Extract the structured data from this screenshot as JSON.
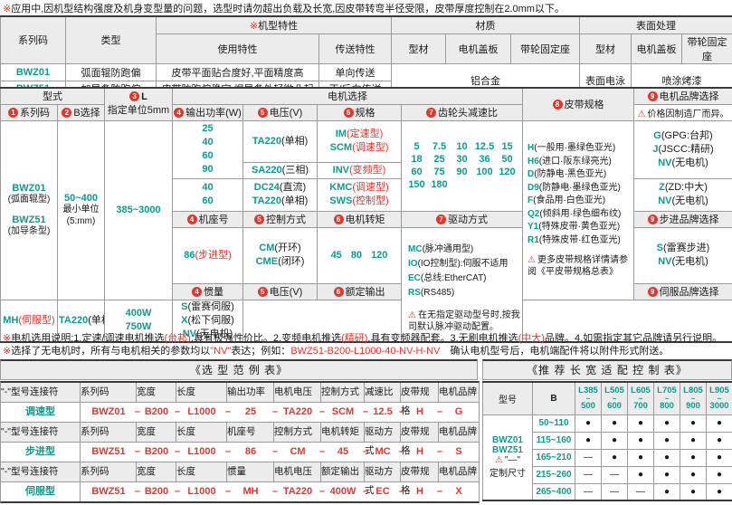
{
  "colors": {
    "teal": "#0E9B8C",
    "red": "#E5352B",
    "header_bg": "#ECECEC"
  },
  "note_top": [
    {
      "t": "※",
      "cls": "rd"
    },
    {
      "t": "应用中,因机型结构强度及机身变型量的问题，选型时请勿超出负载及长宽,因皮带转弯半径受限，皮带厚度控制在2.0mm以下。"
    }
  ],
  "top_table": {
    "series_h": "系列码",
    "type_h": "类型",
    "feat_mark": "※",
    "feat_h": "机型特性",
    "mat_h": "材质",
    "surf_h": "表面处理",
    "use_h": "使用特性",
    "trans_h": "传送特性",
    "profile_h": "型材",
    "cover_h": "电机盖板",
    "pulley_h": "带轮固定座",
    "profile2_h": "型材",
    "cover2_h": "电机盖板",
    "pulley2_h": "带轮固定座",
    "rows": [
      {
        "series": "BWZ01",
        "type": "弧面辊防跑偏",
        "use": "皮带平面贴合度好,平面精度高",
        "trans": "单向传送"
      },
      {
        "series": "BWZ51",
        "type": "加导条防跑偏",
        "use": "皮带防跑偏稳定,焊导条处轻微凸起",
        "trans": "正/反向传送"
      }
    ],
    "material": "铝合金",
    "surface_profile": "表面电泳",
    "surface_paint": "喷涂烤漆"
  },
  "main": {
    "h_type": "型式",
    "h_L": {
      "n": "3",
      "t": "L",
      "sub": "指定单位5mm"
    },
    "h_motor": "电机选择",
    "h_series": {
      "n": "1",
      "t": "系列码"
    },
    "h_b": {
      "n": "2",
      "t": "B选择"
    },
    "h_power": {
      "n": "4",
      "t": "输出功率(W)"
    },
    "h_volt": {
      "n": "5",
      "t": "电压(V)"
    },
    "h_spec": {
      "n": "6",
      "t": "规格"
    },
    "h_ratio": {
      "n": "7",
      "t": "齿轮头减速比"
    },
    "h_belt": {
      "n": "8",
      "t": "皮带规格"
    },
    "h_brand": {
      "n": "9",
      "t": "电机品牌选择"
    },
    "brand_note": "价格因制造厂而异。",
    "series1": "BWZ01",
    "series1_sub": "(弧面辊型)",
    "series2": "BWZ51",
    "series2_sub": "(加导条型)",
    "b_range": "50~400",
    "b_sub1": "最小单位",
    "b_sub2": "(5:mm)",
    "l_range": "385~3000",
    "power1": [
      "25",
      "40",
      "60",
      "90"
    ],
    "power2": [
      "40",
      "60"
    ],
    "volt1": [
      {
        "c": "TA220",
        "p": "(单相)"
      }
    ],
    "volt2": [
      {
        "c": "SA220",
        "p": "(三相)"
      }
    ],
    "volt3": [
      {
        "c": "DC24",
        "p": "(直流)"
      },
      {
        "c": "TA220",
        "p": "(单相)"
      }
    ],
    "spec1": [
      {
        "c": "IM",
        "p": "(定速型)",
        "r": 1
      },
      {
        "c": "SCM",
        "p": "(调速型)",
        "r": 1
      }
    ],
    "spec2": [
      {
        "c": "INV",
        "p": "(变频型)",
        "r": 1
      }
    ],
    "spec3": [
      {
        "c": "KMC",
        "p": "(调速型)",
        "r": 1
      },
      {
        "c": "SWS",
        "p": "(控制型)",
        "r": 1
      }
    ],
    "ratios": [
      "5",
      "7.5",
      "10",
      "12.5",
      "15",
      "18",
      "25",
      "30",
      "36",
      "50",
      "60",
      "75",
      "90",
      "100",
      "120",
      "150",
      "180"
    ],
    "brand1": [
      {
        "c": "G",
        "p": "(GPG:台邦)"
      },
      {
        "c": "J",
        "p": "(JSCC:精研)"
      },
      {
        "c": "NV",
        "p": "(无电机)"
      }
    ],
    "brand2": [
      {
        "c": "Z",
        "p": "(ZD:中大)"
      },
      {
        "c": "NV",
        "p": "(无电机)"
      }
    ],
    "h_frame": {
      "n": "4",
      "t": "机座号"
    },
    "h_ctrl": {
      "n": "5",
      "t": "控制方式"
    },
    "h_torque": {
      "n": "6",
      "t": "电机转矩"
    },
    "h_drive": {
      "n": "7",
      "t": "驱动方式"
    },
    "h_step_brand": {
      "n": "9",
      "t": "步进品牌选择"
    },
    "frame": [
      {
        "c": "86",
        "p": "(步进型)",
        "r": 1
      }
    ],
    "ctrl": [
      {
        "c": "CM",
        "p": "(开环)"
      },
      {
        "c": "CME",
        "p": "(闭环)"
      }
    ],
    "torque": [
      "45",
      "80",
      "120"
    ],
    "drive": [
      {
        "c": "MC",
        "p": "(脉冲通用型)"
      },
      {
        "c": "IO",
        "p": "(IO控制型):伺服不适用"
      },
      {
        "c": "EC",
        "p": "(总线:EtherCAT)"
      },
      {
        "c": "RS",
        "p": "(RS485)"
      }
    ],
    "drive_note": "在无指定驱动型号时,按我司默认脉冲驱动配置。",
    "step_brand": [
      {
        "c": "S",
        "p": "(雷赛步进)"
      },
      {
        "c": "NV",
        "p": "(无电机)"
      }
    ],
    "h_inertia": {
      "n": "4",
      "t": "惯量"
    },
    "h_volt2": {
      "n": "5",
      "t": "电压(V)"
    },
    "h_rated": {
      "n": "6",
      "t": "额定输出"
    },
    "h_servo_brand": {
      "n": "9",
      "t": "伺服品牌选择"
    },
    "inertia": [
      {
        "c": "MH",
        "p": "(伺服型)",
        "r": 1
      }
    ],
    "volt4": [
      {
        "c": "TA220",
        "p": "(单相)"
      }
    ],
    "rated": [
      "400W",
      "750W"
    ],
    "servo_brand": [
      {
        "c": "S",
        "p": "(雷赛伺服)"
      },
      {
        "c": "X",
        "p": "(松下伺服)"
      },
      {
        "c": "NV",
        "p": "(无电机)"
      }
    ],
    "belts": [
      {
        "c": "H",
        "p": "(一般用·墨绿色亚光)"
      },
      {
        "c": "H6",
        "p": "(进口·阪东绿亮光)"
      },
      {
        "c": "D",
        "p": "(防静电·黑色亚光)"
      },
      {
        "c": "D9",
        "p": "(防静电·墨绿色亚光)"
      },
      {
        "c": "F",
        "p": "(食品用·白色亚光)"
      },
      {
        "c": "Q2",
        "p": "(倾斜用·绿色细布纹)"
      },
      {
        "c": "Y1",
        "p": "(特殊皮带·黄色亚光)"
      },
      {
        "c": "R1",
        "p": "(特殊皮带·红色亚光)"
      }
    ],
    "belt_note": "更多皮带规格详情请参阅《平皮带规格总表》"
  },
  "notes": {
    "line1": [
      {
        "t": "※",
        "cls": "rd"
      },
      {
        "t": "电机选用说明:1.定速/调速电机推选"
      },
      {
        "t": "(台邦)",
        "cls": "rd"
      },
      {
        "t": ",具有极强性价比。2.变频电机推选"
      },
      {
        "t": "(精研)",
        "cls": "rd"
      },
      {
        "t": ",具有变频器配套。3.无刷电机推选"
      },
      {
        "t": "(中大)",
        "cls": "rd"
      },
      {
        "t": "品牌。4.如需指定其它品牌请另行说明。"
      }
    ],
    "line2": [
      {
        "t": "※",
        "cls": "rd"
      },
      {
        "t": "选择了无电机时，所有与电机相关的参数均以"
      },
      {
        "t": "\"NV\"",
        "cls": "rd"
      },
      {
        "t": "表达；例如："
      },
      {
        "t": "BWZ51-B200-L1000-40-NV-H-NV",
        "cls": "rd"
      },
      {
        "t": "　确认电机型号后，电机端配件将以附件形式附送。"
      }
    ]
  },
  "examples": {
    "title": "《选 型 范 例 表》",
    "groups": [
      {
        "head": [
          "\"-\"型号连接符",
          "系列码",
          "宽度",
          "长度",
          "输出功率",
          "电机电压",
          "控制方式",
          "减速比",
          "皮带规格",
          "电机品牌"
        ],
        "label": "调速型",
        "values": [
          "BWZ01",
          "B200",
          "L1000",
          "25",
          "TA220",
          "SCM",
          "12.5",
          "H",
          "G"
        ]
      },
      {
        "head": [
          "\"-\"型号连接符",
          "系列码",
          "宽度",
          "长度",
          "机座号",
          "控制方式",
          "电机转矩",
          "驱动方式",
          "皮带规格",
          "电机品牌"
        ],
        "label": "步进型",
        "values": [
          "BWZ51",
          "B200",
          "L1000",
          "86",
          "CM",
          "45",
          "MC",
          "H",
          "S"
        ]
      },
      {
        "head": [
          "\"-\"型号连接符",
          "系列码",
          "宽度",
          "长度",
          "惯量",
          "电机电压",
          "额定输出",
          "驱动方式",
          "皮带规格",
          "电机品牌"
        ],
        "label": "伺服型",
        "values": [
          "BWZ51",
          "B200",
          "L1000",
          "MH",
          "TA220",
          "400W",
          "EC",
          "H",
          "X"
        ]
      }
    ]
  },
  "size_table": {
    "title": "《推 荐 长 宽 适 配 控 制 表》",
    "model_h": "型号",
    "b_h": "B",
    "l_headers": [
      [
        "L385",
        "500"
      ],
      [
        "L505",
        "600"
      ],
      [
        "L605",
        "700"
      ],
      [
        "L705",
        "800"
      ],
      [
        "L805",
        "900"
      ],
      [
        "L905",
        "3000"
      ]
    ],
    "models": [
      "BWZ01",
      "BWZ51"
    ],
    "model_note_mark": "\"—\"",
    "model_note": "定制尺寸",
    "rows": [
      {
        "b": "50~110",
        "marks": [
          "●",
          "●",
          "●",
          "●",
          "●",
          "●"
        ]
      },
      {
        "b": "115~160",
        "marks": [
          "●",
          "●",
          "●",
          "●",
          "●",
          "●"
        ]
      },
      {
        "b": "165~210",
        "marks": [
          "—",
          "●",
          "●",
          "●",
          "●",
          "●"
        ]
      },
      {
        "b": "215~260",
        "marks": [
          "—",
          "—",
          "●",
          "●",
          "●",
          "●"
        ]
      },
      {
        "b": "265~400",
        "marks": [
          "—",
          "—",
          "—",
          "●",
          "●",
          "●"
        ]
      }
    ]
  }
}
